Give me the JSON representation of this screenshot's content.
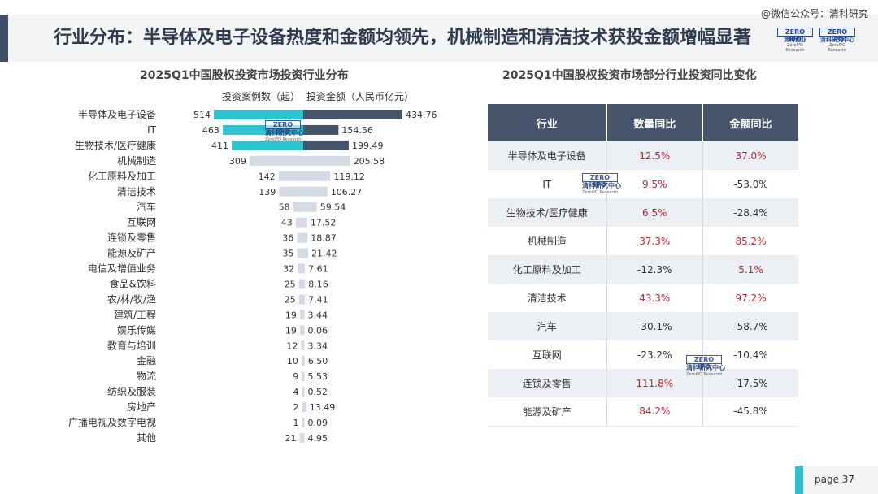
{
  "header": {
    "title": "行业分布：半导体及电子设备热度和金额均领先，机械制造和清洁技术获投金额增幅显著",
    "watermark": "@微信公众号：清科研究"
  },
  "logo": {
    "brand": "ZERO IPO",
    "cn": "清科研究中心",
    "en": "ZeroIPO Research",
    "cn_alt": "清科创业"
  },
  "chart_data": [
    {
      "type": "bar",
      "title": "2025Q1中国股权投资市场投资行业分布",
      "series": [
        {
          "name": "投资案例数（起）",
          "color": "#2fc3cf",
          "color_light": "#d5dbe4",
          "values": [
            514,
            463,
            411,
            309,
            142,
            139,
            58,
            43,
            36,
            35,
            32,
            25,
            25,
            19,
            19,
            12,
            10,
            9,
            4,
            2,
            1,
            21
          ]
        },
        {
          "name": "投资金额（人民币亿元）",
          "color": "#46556b",
          "color_light": "#d5dbe4",
          "values": [
            434.76,
            154.56,
            199.49,
            205.58,
            119.12,
            106.27,
            59.54,
            17.52,
            18.87,
            21.42,
            7.61,
            8.16,
            7.41,
            3.44,
            0.06,
            3.34,
            6.5,
            5.53,
            0.52,
            13.49,
            0.09,
            4.95
          ]
        }
      ],
      "value_labels": {
        "counts": [
          "514",
          "463",
          "411",
          "309",
          "142",
          "139",
          "58",
          "43",
          "36",
          "35",
          "32",
          "25",
          "25",
          "19",
          "19",
          "12",
          "10",
          "9",
          "4",
          "2",
          "1",
          "21"
        ],
        "amounts": [
          "434.76",
          "154.56",
          "199.49",
          "205.58",
          "119.12",
          "106.27",
          "59.54",
          "17.52",
          "18.87",
          "21.42",
          "7.61",
          "8.16",
          "7.41",
          "3.44",
          "0.06",
          "3.34",
          "6.50",
          "5.53",
          "0.52",
          "13.49",
          "0.09",
          "4.95"
        ]
      },
      "categories": [
        "半导体及电子设备",
        "IT",
        "生物技术/医疗健康",
        "机械制造",
        "化工原料及加工",
        "清洁技术",
        "汽车",
        "互联网",
        "连锁及零售",
        "能源及矿产",
        "电信及增值业务",
        "食品&饮料",
        "农/林/牧/渔",
        "建筑/工程",
        "娱乐传媒",
        "教育与培训",
        "金融",
        "物流",
        "纺织及服装",
        "房地产",
        "广播电视及数字电视",
        "其他"
      ],
      "highlight_top": 3,
      "orientation": "horizontal-butterfly"
    },
    {
      "type": "table",
      "title": "2025Q1中国股权投资市场部分行业投资同比变化",
      "columns": [
        "行业",
        "数量同比",
        "金额同比"
      ],
      "rows": [
        [
          "半导体及电子设备",
          "12.5%",
          "37.0%"
        ],
        [
          "IT",
          "9.5%",
          "-53.0%"
        ],
        [
          "生物技术/医疗健康",
          "6.5%",
          "-28.4%"
        ],
        [
          "机械制造",
          "37.3%",
          "85.2%"
        ],
        [
          "化工原料及加工",
          "-12.3%",
          "5.1%"
        ],
        [
          "清洁技术",
          "43.3%",
          "97.2%"
        ],
        [
          "汽车",
          "-30.1%",
          "-58.7%"
        ],
        [
          "互联网",
          "-23.2%",
          "-10.4%"
        ],
        [
          "连锁及零售",
          "111.8%",
          "-17.5%"
        ],
        [
          "能源及矿产",
          "84.2%",
          "-45.8%"
        ]
      ],
      "positive_color": "#c0282d"
    }
  ],
  "footer": {
    "page_label": "page  37"
  }
}
